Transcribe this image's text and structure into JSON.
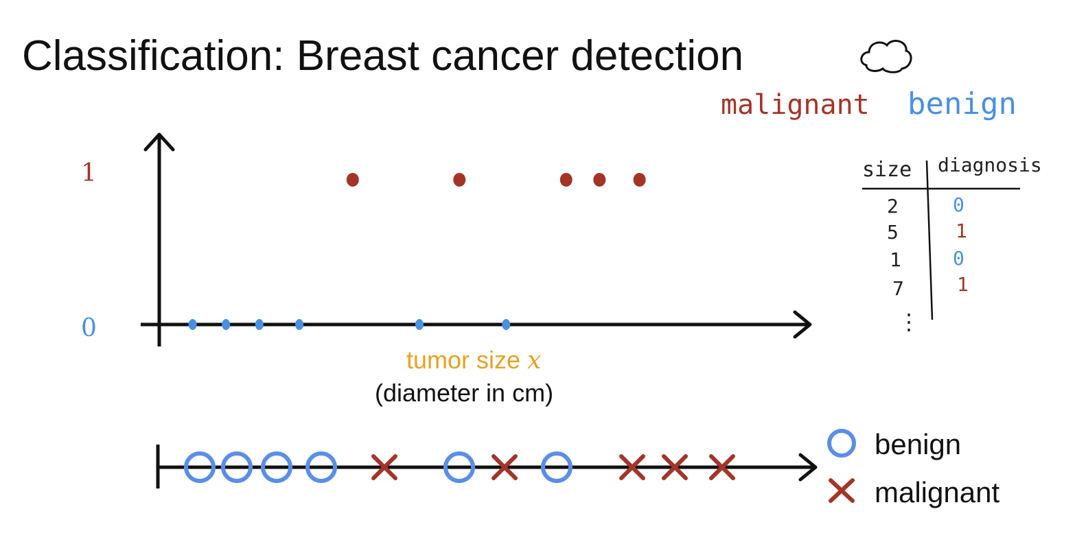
{
  "title": "Classification: Breast cancer detection",
  "handwritten_legend": {
    "malignant": "malignant",
    "benign": "benign"
  },
  "colors": {
    "malignant": "#a33528",
    "benign": "#4a90e2",
    "x_label": "#e6a222"
  },
  "icons": [
    "thought-cloud-icon"
  ],
  "chart_data": {
    "type": "scatter",
    "y_ticks": [
      "1",
      "0"
    ],
    "xlabel": "tumor size",
    "xlabel_var": "x",
    "xlabel_sub": "(diameter in cm)",
    "benign_x": [
      1.0,
      1.5,
      2.0,
      2.6,
      4.4,
      5.7
    ],
    "malignant_x": [
      3.4,
      5.0,
      6.6,
      7.1,
      7.7
    ],
    "x_range": [
      0.5,
      8.5
    ]
  },
  "table": {
    "headers": [
      "size",
      "diagnosis"
    ],
    "rows": [
      {
        "size": "2",
        "diagnosis": "0"
      },
      {
        "size": "5",
        "diagnosis": "1"
      },
      {
        "size": "1",
        "diagnosis": "0"
      },
      {
        "size": "7",
        "diagnosis": "1"
      }
    ],
    "ellipsis": "⋮"
  },
  "strip_order": [
    "o",
    "o",
    "o",
    "o",
    "x",
    "o",
    "x",
    "o",
    "x",
    "x",
    "x"
  ],
  "legend": {
    "benign": "benign",
    "malignant": "malignant"
  }
}
